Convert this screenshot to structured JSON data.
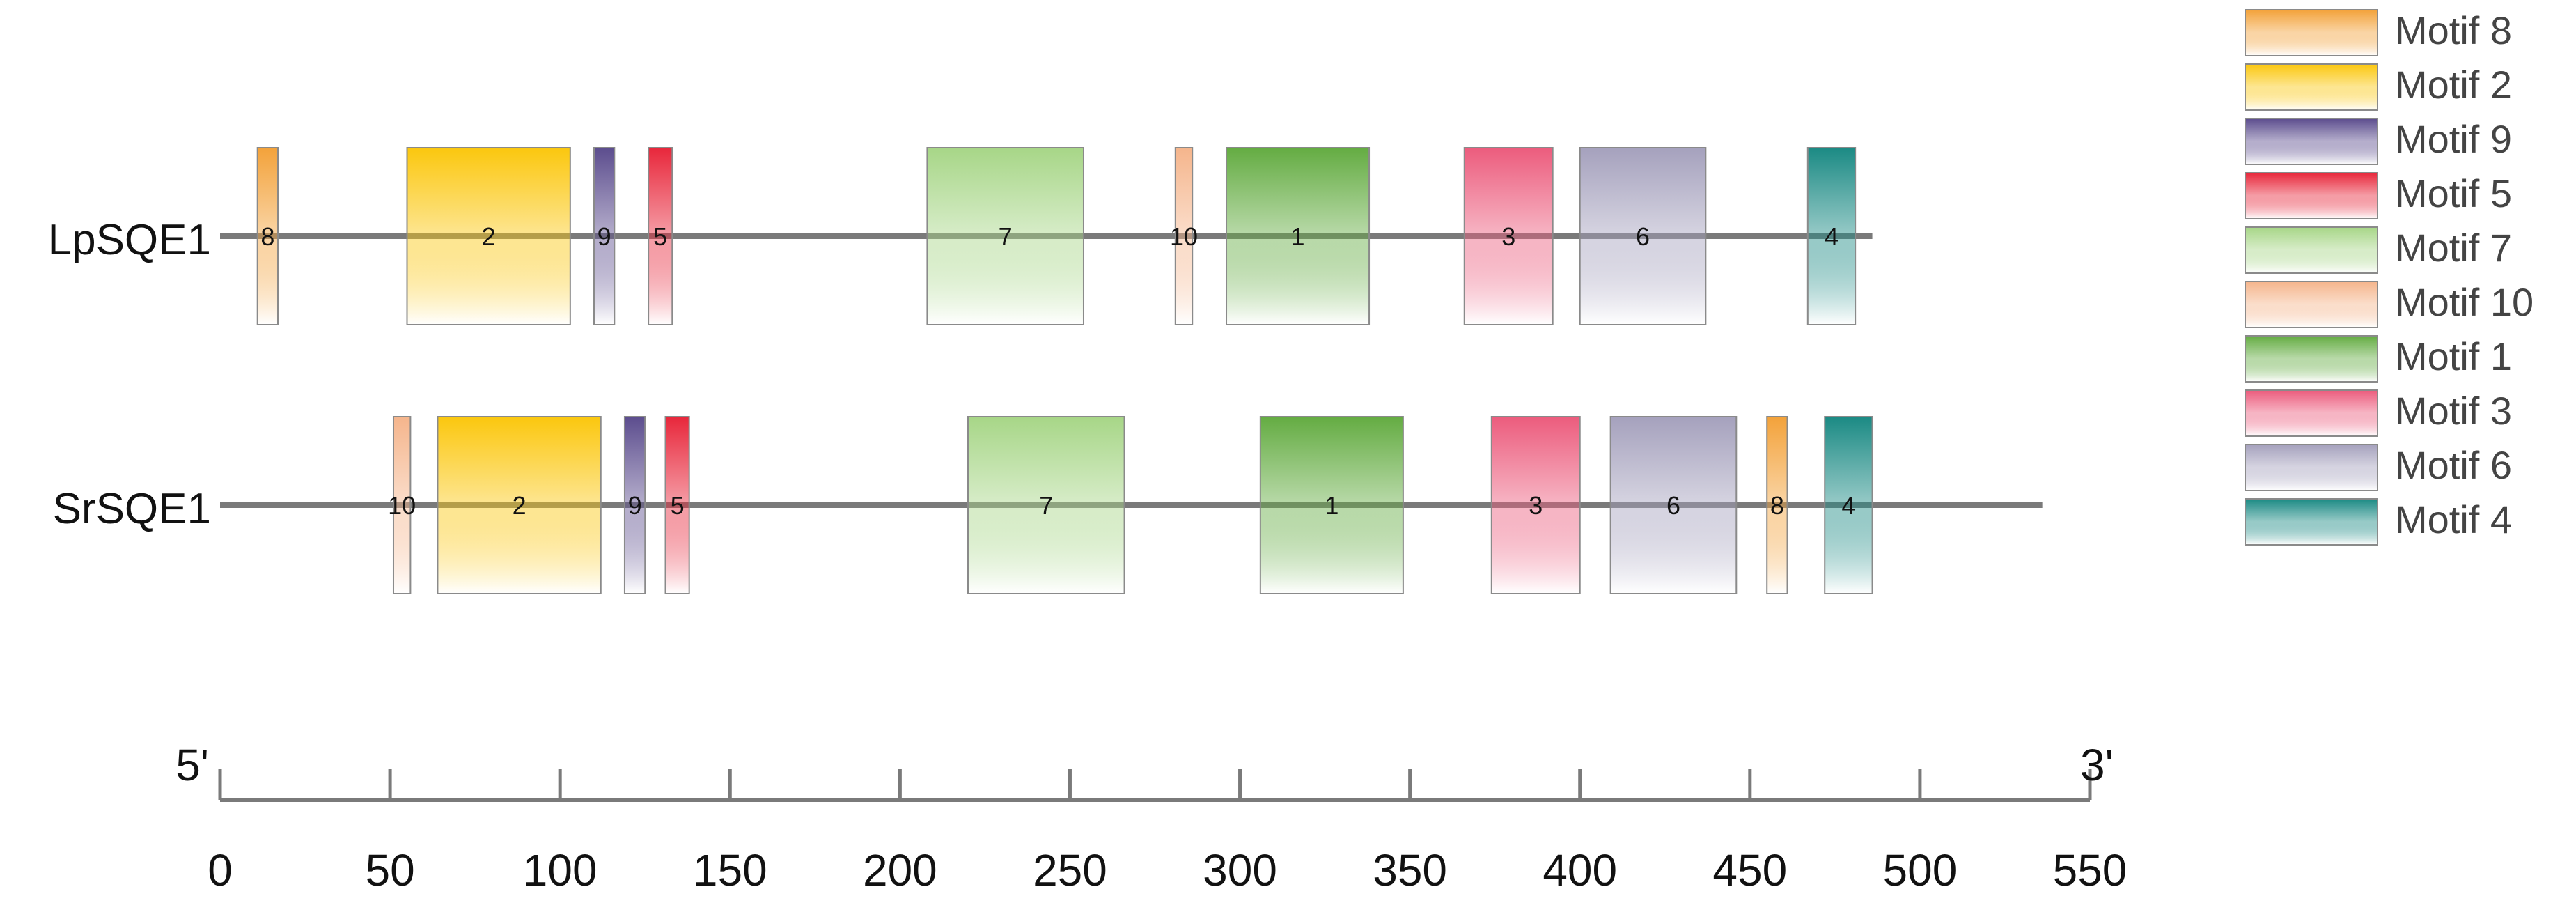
{
  "sequences": [
    {
      "name": "LpSQE1",
      "length": 486,
      "motifs": [
        {
          "motif": "8",
          "start": 11,
          "end": 17
        },
        {
          "motif": "2",
          "start": 55,
          "end": 103
        },
        {
          "motif": "9",
          "start": 110,
          "end": 116
        },
        {
          "motif": "5",
          "start": 126,
          "end": 133
        },
        {
          "motif": "7",
          "start": 208,
          "end": 254
        },
        {
          "motif": "10",
          "start": 281,
          "end": 286
        },
        {
          "motif": "1",
          "start": 296,
          "end": 338
        },
        {
          "motif": "3",
          "start": 366,
          "end": 392
        },
        {
          "motif": "6",
          "start": 400,
          "end": 437
        },
        {
          "motif": "4",
          "start": 467,
          "end": 481
        }
      ]
    },
    {
      "name": "SrSQE1",
      "length": 536,
      "motifs": [
        {
          "motif": "10",
          "start": 51,
          "end": 56
        },
        {
          "motif": "2",
          "start": 64,
          "end": 112
        },
        {
          "motif": "9",
          "start": 119,
          "end": 125
        },
        {
          "motif": "5",
          "start": 131,
          "end": 138
        },
        {
          "motif": "7",
          "start": 220,
          "end": 266
        },
        {
          "motif": "1",
          "start": 306,
          "end": 348
        },
        {
          "motif": "3",
          "start": 374,
          "end": 400
        },
        {
          "motif": "6",
          "start": 409,
          "end": 446
        },
        {
          "motif": "8",
          "start": 455,
          "end": 461
        },
        {
          "motif": "4",
          "start": 472,
          "end": 486
        }
      ]
    }
  ],
  "legend": [
    {
      "id": "8",
      "label": "Motif 8",
      "color": "#F3A23A"
    },
    {
      "id": "2",
      "label": "Motif 2",
      "color": "#FBC70E"
    },
    {
      "id": "9",
      "label": "Motif 9",
      "color": "#5C4D8E"
    },
    {
      "id": "5",
      "label": "Motif 5",
      "color": "#E8273B"
    },
    {
      "id": "7",
      "label": "Motif 7",
      "color": "#A7D687"
    },
    {
      "id": "10",
      "label": "Motif 10",
      "color": "#F5B58C"
    },
    {
      "id": "1",
      "label": "Motif 1",
      "color": "#64AC42"
    },
    {
      "id": "3",
      "label": "Motif 3",
      "color": "#EC5C7D"
    },
    {
      "id": "6",
      "label": "Motif 6",
      "color": "#A5A1BD"
    },
    {
      "id": "4",
      "label": "Motif 4",
      "color": "#1B8A84"
    }
  ],
  "scale": {
    "min": 0,
    "max": 550,
    "ticks": [
      0,
      50,
      100,
      150,
      200,
      250,
      300,
      350,
      400,
      450,
      500,
      550
    ],
    "left_label": "5'",
    "right_label": "3'"
  }
}
